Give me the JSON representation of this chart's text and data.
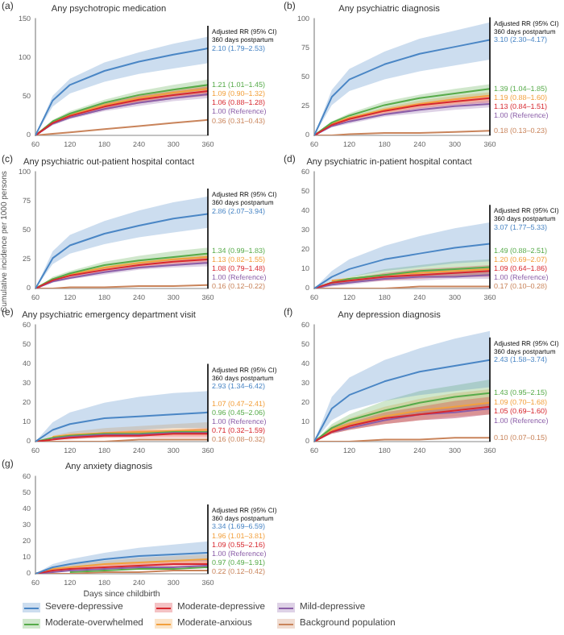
{
  "chart_data": [
    {
      "type": "line",
      "title": "Any psychotropic medication",
      "annotations": [
        "(a)",
        "Adjusted RR (95% CI)",
        "360 days postpartum",
        "2.10 (1.79–2.53)",
        "1.06 (0.88–1.28)",
        "1.00 (Reference)",
        "1.21 (1.01–1.45)",
        "1.09 (0.90–1.32)",
        "0.36 (0.31–0.43)"
      ],
      "x": [
        60,
        90,
        120,
        180,
        240,
        300,
        360
      ],
      "xlim": [
        60,
        360
      ],
      "xticks": [
        60,
        120,
        180,
        240,
        300,
        360
      ],
      "ylim": [
        0,
        150
      ],
      "yticks": [
        0,
        50,
        100,
        150
      ],
      "grid": false,
      "ref_lines": [
        {
          "axis": "x",
          "value": 360,
          "color": "#000000"
        }
      ],
      "series": [
        {
          "color": "#4a86c5",
          "values": [
            0,
            45,
            65,
            83,
            95,
            104,
            112
          ],
          "lower": [
            0,
            37,
            54,
            69,
            79,
            86,
            93
          ],
          "upper": [
            0,
            51,
            73,
            94,
            107,
            118,
            127
          ]
        },
        {
          "color": "#d7282f",
          "values": [
            0,
            16,
            25,
            37,
            46,
            52,
            57
          ],
          "lower": [
            0,
            14,
            22,
            33,
            41,
            47,
            51
          ],
          "upper": [
            0,
            18,
            28,
            41,
            51,
            57,
            63
          ]
        },
        {
          "color": "#8b5ea8",
          "values": [
            0,
            15,
            23,
            34,
            42,
            48,
            53
          ],
          "lower": [
            0,
            13,
            21,
            31,
            38,
            44,
            48
          ],
          "upper": [
            0,
            17,
            25,
            37,
            46,
            53,
            58
          ]
        },
        {
          "color": "#57ab4a",
          "values": [
            0,
            18,
            28,
            42,
            52,
            59,
            65
          ],
          "lower": [
            0,
            16,
            25,
            38,
            47,
            53,
            59
          ],
          "upper": [
            0,
            20,
            31,
            46,
            57,
            65,
            72
          ]
        },
        {
          "color": "#f2a03d",
          "values": [
            0,
            17,
            26,
            39,
            48,
            55,
            60
          ],
          "lower": [
            0,
            15,
            23,
            35,
            43,
            50,
            54
          ],
          "upper": [
            0,
            19,
            29,
            43,
            53,
            60,
            66
          ]
        },
        {
          "color": "#c9845b",
          "values": [
            0,
            2,
            4,
            8,
            12,
            16,
            20
          ]
        }
      ]
    },
    {
      "type": "line",
      "title": "Any psychiatric diagnosis",
      "annotations": [
        "(b)",
        "Adjusted RR (95% CI)",
        "360 days postpartum",
        "3.10 (2.30–4.17)",
        "1.13 (0.84–1.51)",
        "1.00 (Reference)",
        "1.39 (1.04–1.85)",
        "1.19 (0.88–1.60)",
        "0.18 (0.13–0.23)"
      ],
      "x": [
        60,
        90,
        120,
        180,
        240,
        300,
        360
      ],
      "xlim": [
        60,
        360
      ],
      "xticks": [
        60,
        120,
        180,
        240,
        300,
        360
      ],
      "ylim": [
        0,
        100
      ],
      "yticks": [
        0,
        25,
        50,
        75,
        100
      ],
      "grid": false,
      "ref_lines": [
        {
          "axis": "x",
          "value": 360,
          "color": "#000000"
        }
      ],
      "series": [
        {
          "color": "#4a86c5",
          "values": [
            0,
            33,
            48,
            61,
            70,
            76,
            82
          ],
          "lower": [
            0,
            26,
            38,
            48,
            55,
            60,
            65
          ],
          "upper": [
            0,
            39,
            57,
            72,
            83,
            90,
            97
          ]
        },
        {
          "color": "#d7282f",
          "values": [
            0,
            9,
            14,
            21,
            26,
            29,
            32
          ],
          "lower": [
            0,
            8,
            12,
            18,
            23,
            26,
            28
          ],
          "upper": [
            0,
            10,
            15,
            23,
            28,
            32,
            35
          ]
        },
        {
          "color": "#8b5ea8",
          "values": [
            0,
            8,
            12,
            18,
            22,
            25,
            27
          ],
          "lower": [
            0,
            7,
            10,
            16,
            19,
            22,
            24
          ],
          "upper": [
            0,
            8,
            13,
            19,
            24,
            27,
            30
          ]
        },
        {
          "color": "#57ab4a",
          "values": [
            0,
            11,
            17,
            26,
            32,
            36,
            40
          ],
          "lower": [
            0,
            10,
            15,
            23,
            28,
            32,
            35
          ],
          "upper": [
            0,
            12,
            19,
            29,
            35,
            40,
            44
          ]
        },
        {
          "color": "#f2a03d",
          "values": [
            0,
            10,
            15,
            22,
            27,
            31,
            34
          ],
          "lower": [
            0,
            9,
            13,
            19,
            24,
            27,
            30
          ],
          "upper": [
            0,
            11,
            16,
            24,
            30,
            34,
            37
          ]
        },
        {
          "color": "#c9845b",
          "values": [
            0,
            0,
            1,
            2,
            2,
            3,
            4
          ]
        }
      ]
    },
    {
      "type": "line",
      "title": "Any psychiatric out-patient hospital contact",
      "ylabel": "Cumulative incidence per 1000 persons",
      "annotations": [
        "(c)",
        "Adjusted RR (95% CI)",
        "360 days postpartum",
        "2.86 (2.07–3.94)",
        "1.08 (0.79–1.48)",
        "1.00 (Reference)",
        "1.34 (0.99–1.83)",
        "1.13 (0.82–1.55)",
        "0.16 (0.12–0.22)"
      ],
      "x": [
        60,
        90,
        120,
        180,
        240,
        300,
        360
      ],
      "xlim": [
        60,
        360
      ],
      "xticks": [
        60,
        120,
        180,
        240,
        300,
        360
      ],
      "ylim": [
        0,
        100
      ],
      "yticks": [
        0,
        25,
        50,
        75,
        100
      ],
      "grid": false,
      "ref_lines": [
        {
          "axis": "x",
          "value": 360,
          "color": "#000000"
        }
      ],
      "series": [
        {
          "color": "#4a86c5",
          "values": [
            0,
            26,
            37,
            47,
            54,
            60,
            64
          ],
          "lower": [
            0,
            21,
            30,
            38,
            44,
            48,
            52
          ],
          "upper": [
            0,
            32,
            46,
            58,
            67,
            74,
            79
          ]
        },
        {
          "color": "#d7282f",
          "values": [
            0,
            7,
            11,
            16,
            20,
            23,
            25
          ],
          "lower": [
            0,
            6,
            9,
            14,
            17,
            20,
            22
          ],
          "upper": [
            0,
            8,
            12,
            18,
            22,
            25,
            28
          ]
        },
        {
          "color": "#8b5ea8",
          "values": [
            0,
            6,
            9,
            14,
            18,
            20,
            22
          ],
          "lower": [
            0,
            5,
            8,
            12,
            16,
            18,
            19
          ],
          "upper": [
            0,
            7,
            10,
            16,
            19,
            22,
            24
          ]
        },
        {
          "color": "#57ab4a",
          "values": [
            0,
            8,
            13,
            20,
            24,
            27,
            30
          ],
          "lower": [
            0,
            7,
            11,
            17,
            21,
            24,
            26
          ],
          "upper": [
            0,
            10,
            15,
            23,
            28,
            32,
            35
          ]
        },
        {
          "color": "#f2a03d",
          "values": [
            0,
            8,
            12,
            18,
            22,
            25,
            27
          ],
          "lower": [
            0,
            7,
            10,
            16,
            19,
            22,
            24
          ],
          "upper": [
            0,
            8,
            13,
            19,
            24,
            27,
            30
          ]
        },
        {
          "color": "#c9845b",
          "values": [
            0,
            0,
            1,
            1,
            2,
            2,
            3
          ]
        }
      ]
    },
    {
      "type": "line",
      "title": "Any psychiatric in-patient hospital contact",
      "annotations": [
        "(d)",
        "Adjusted RR (95% CI)",
        "360 days postpartum",
        "3.07 (1.77–5.33)",
        "1.09 (0.64–1.86)",
        "1.00 (Reference)",
        "1.49 (0.88–2.51)",
        "1.20 (0.69–2.07)",
        "0.17 (0.10–0.28)"
      ],
      "x": [
        60,
        90,
        120,
        180,
        240,
        300,
        360
      ],
      "xlim": [
        60,
        360
      ],
      "xticks": [
        60,
        120,
        180,
        240,
        300,
        360
      ],
      "ylim": [
        0,
        60
      ],
      "yticks": [
        0,
        10,
        20,
        30,
        40,
        50,
        60
      ],
      "grid": false,
      "ref_lines": [
        {
          "axis": "x",
          "value": 360,
          "color": "#000000"
        }
      ],
      "series": [
        {
          "color": "#4a86c5",
          "values": [
            0,
            6,
            10,
            15,
            18,
            21,
            23
          ],
          "lower": [
            0,
            4,
            6,
            9,
            11,
            13,
            14
          ],
          "upper": [
            0,
            9,
            15,
            22,
            27,
            31,
            34
          ]
        },
        {
          "color": "#d7282f",
          "values": [
            0,
            3,
            4,
            6,
            7,
            8,
            9
          ],
          "lower": [
            0,
            2,
            3,
            4,
            5,
            6,
            6
          ],
          "upper": [
            0,
            3,
            5,
            8,
            10,
            11,
            12
          ]
        },
        {
          "color": "#8b5ea8",
          "values": [
            0,
            2,
            3,
            5,
            6,
            6,
            7
          ],
          "lower": [
            0,
            1,
            2,
            4,
            4,
            5,
            5
          ],
          "upper": [
            0,
            3,
            4,
            6,
            7,
            8,
            9
          ]
        },
        {
          "color": "#57ab4a",
          "values": [
            0,
            3,
            5,
            7,
            9,
            10,
            11
          ],
          "lower": [
            0,
            2,
            3,
            5,
            6,
            6,
            7
          ],
          "upper": [
            0,
            4,
            6,
            10,
            12,
            14,
            15
          ]
        },
        {
          "color": "#f2a03d",
          "values": [
            null,
            4,
            5,
            7,
            8,
            9,
            10
          ]
        },
        {
          "color": "#c9845b",
          "values": [
            0,
            0,
            0,
            0,
            1,
            1,
            1
          ]
        }
      ]
    },
    {
      "type": "line",
      "title": "Any psychiatric emergency department visit",
      "annotations": [
        "(e)",
        "Adjusted RR (95% CI)",
        "360 days postpartum",
        "2.93 (1.34–6.42)",
        "0.71 (0.32–1.59)",
        "1.00 (Reference)",
        "0.96 (0.45–2.06)",
        "1.07 (0.47–2.41)",
        "0.16 (0.08–0.32)"
      ],
      "x": [
        60,
        90,
        120,
        180,
        240,
        300,
        360
      ],
      "xlim": [
        60,
        360
      ],
      "xticks": [
        60,
        120,
        180,
        240,
        300,
        360
      ],
      "ylim": [
        0,
        60
      ],
      "yticks": [
        0,
        10,
        20,
        30,
        40,
        50,
        60
      ],
      "grid": false,
      "ref_lines": [
        {
          "axis": "x",
          "value": 360,
          "color": "#000000"
        }
      ],
      "series": [
        {
          "color": "#4a86c5",
          "values": [
            0,
            6,
            9,
            12,
            13,
            14,
            15
          ],
          "lower": [
            0,
            3,
            4,
            5,
            6,
            7,
            7
          ],
          "upper": [
            0,
            10,
            15,
            20,
            23,
            25,
            26
          ]
        },
        {
          "color": "#d7282f",
          "values": [
            0,
            1,
            2,
            3,
            3,
            4,
            4
          ],
          "lower": [
            0,
            1,
            1,
            2,
            2,
            2,
            2
          ],
          "upper": [
            0,
            2,
            3,
            5,
            6,
            6,
            7
          ]
        },
        {
          "color": "#8b5ea8",
          "values": [
            null,
            1.5,
            2.5,
            3.5,
            3.5,
            4.5,
            4.5
          ]
        },
        {
          "color": "#57ab4a",
          "values": [
            0,
            2,
            3,
            4,
            4,
            5,
            5
          ]
        },
        {
          "color": "#f2a03d",
          "values": [
            null,
            2.5,
            3.5,
            4.5,
            5,
            5.5,
            6
          ],
          "lower": [
            0,
            1,
            2,
            2,
            3,
            3,
            3
          ],
          "upper": [
            0,
            3,
            5,
            7,
            8,
            9,
            10
          ]
        },
        {
          "color": "#c9845b",
          "values": [
            0,
            0,
            0,
            0,
            1,
            1,
            1
          ]
        }
      ]
    },
    {
      "type": "line",
      "title": "Any depression diagnosis",
      "annotations": [
        "(f)",
        "Adjusted RR (95% CI)",
        "360 days postpartum",
        "2.43 (1.58–3.74)",
        "1.05 (0.69–1.60)",
        "1.00 (Reference)",
        "1.43 (0.95–2.15)",
        "1.09 (0.70–1.68)",
        "0.10 (0.07–0.15)"
      ],
      "x": [
        60,
        90,
        120,
        180,
        240,
        300,
        360
      ],
      "xlim": [
        60,
        360
      ],
      "xticks": [
        60,
        120,
        180,
        240,
        300,
        360
      ],
      "ylim": [
        0,
        60
      ],
      "yticks": [
        0,
        10,
        20,
        30,
        40,
        50,
        60
      ],
      "grid": false,
      "ref_lines": [
        {
          "axis": "x",
          "value": 360,
          "color": "#000000"
        }
      ],
      "series": [
        {
          "color": "#4a86c5",
          "values": [
            0,
            17,
            24,
            31,
            36,
            39,
            42
          ],
          "lower": [
            0,
            11,
            16,
            21,
            24,
            26,
            28
          ],
          "upper": [
            0,
            23,
            33,
            42,
            48,
            53,
            57
          ]
        },
        {
          "color": "#d7282f",
          "values": [
            0,
            5,
            8,
            12,
            14,
            16,
            18
          ],
          "lower": [
            0,
            4,
            6,
            9,
            11,
            12,
            14
          ],
          "upper": [
            0,
            7,
            10,
            15,
            18,
            21,
            23
          ]
        },
        {
          "color": "#8b5ea8",
          "values": [
            0,
            5,
            7,
            11,
            14,
            15,
            17
          ],
          "lower": [
            0,
            4,
            6,
            9,
            11,
            12,
            14
          ],
          "upper": [
            0,
            6,
            9,
            13,
            16,
            18,
            20
          ]
        },
        {
          "color": "#57ab4a",
          "values": [
            0,
            7,
            11,
            16,
            20,
            23,
            25
          ],
          "lower": [
            0,
            5,
            8,
            12,
            14,
            16,
            18
          ],
          "upper": [
            0,
            9,
            14,
            21,
            26,
            29,
            32
          ]
        },
        {
          "color": "#f2a03d",
          "values": [
            0,
            6,
            9,
            13,
            16,
            18,
            20
          ],
          "lower": [
            0,
            4,
            6,
            9,
            11,
            13,
            14
          ],
          "upper": [
            0,
            8,
            12,
            18,
            22,
            25,
            27
          ]
        },
        {
          "color": "#c9845b",
          "values": [
            0,
            0,
            0,
            1,
            1,
            2,
            2
          ]
        }
      ]
    },
    {
      "type": "line",
      "title": "Any anxiety diagnosis",
      "xlabel": "Days since childbirth",
      "legend": "bottom",
      "annotations": [
        "(g)",
        "Adjusted RR (95% CI)",
        "360 days postpartum",
        "3.34 (1.69–6.59)",
        "1.09 (0.55–2.16)",
        "1.00 (Reference)",
        "0.97 (0.49–1.91)",
        "1.96 (1.01–3.81)",
        "0.22 (0.12–0.42)"
      ],
      "x": [
        60,
        90,
        120,
        180,
        240,
        300,
        360
      ],
      "xlim": [
        60,
        360
      ],
      "xticks": [
        60,
        120,
        180,
        240,
        300,
        360
      ],
      "ylim": [
        0,
        60
      ],
      "yticks": [
        0,
        10,
        20,
        30,
        40,
        50,
        60
      ],
      "grid": false,
      "ref_lines": [
        {
          "axis": "x",
          "value": 360,
          "color": "#000000"
        }
      ],
      "series": [
        {
          "name": "Severe-depressive",
          "color": "#4a86c5",
          "values": [
            0,
            4,
            6,
            9,
            11,
            12,
            13
          ],
          "lower": [
            0,
            2,
            4,
            6,
            7,
            8,
            8
          ],
          "upper": [
            0,
            6,
            9,
            13,
            16,
            18,
            20
          ]
        },
        {
          "name": "Moderate-depressive",
          "color": "#d7282f",
          "values": [
            0,
            2,
            3,
            4,
            5,
            6,
            6
          ],
          "lower": [
            0,
            1,
            2,
            3,
            3,
            4,
            4
          ],
          "upper": [
            0,
            3,
            4,
            6,
            7,
            8,
            9
          ]
        },
        {
          "name": "Mild-depressive",
          "color": "#8b5ea8",
          "values": [
            0,
            1,
            2,
            3,
            4,
            4,
            5
          ]
        },
        {
          "name": "Moderate-overwhelmed",
          "color": "#57ab4a",
          "values": [
            null,
            null,
            1,
            2,
            3,
            3,
            4
          ]
        },
        {
          "name": "Moderate-anxious",
          "color": "#f2a03d",
          "values": [
            0,
            3,
            4,
            6,
            7,
            8,
            9
          ],
          "lower": [
            0,
            2,
            3,
            4,
            5,
            6,
            6
          ],
          "upper": [
            0,
            4,
            6,
            8,
            10,
            11,
            12
          ]
        },
        {
          "name": "Background population",
          "color": "#c9845b",
          "values": [
            0,
            0,
            0,
            1,
            1,
            2,
            2
          ]
        }
      ]
    }
  ]
}
